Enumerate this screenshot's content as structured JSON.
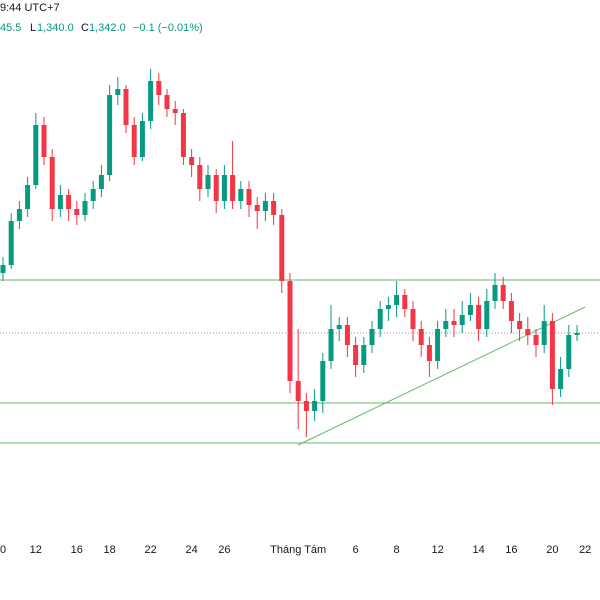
{
  "header": {
    "time": "9:44 UTC+7",
    "open_fragment": "45.5",
    "low_label": "L",
    "low": {
      "value": 1340,
      "label": "1,340.0"
    },
    "close_label": "C",
    "close": {
      "value": 1342,
      "label": "1,342.0"
    },
    "change": "−0.1 (−0.01%)"
  },
  "chart_data": {
    "type": "candlestick",
    "categories": [
      "0",
      null,
      null,
      null,
      "12",
      null,
      null,
      null,
      null,
      "16",
      null,
      null,
      null,
      "18",
      null,
      null,
      null,
      null,
      "22",
      null,
      null,
      null,
      null,
      "24",
      null,
      null,
      null,
      "26",
      null,
      null,
      null,
      null,
      null,
      null,
      null,
      null,
      "Tháng Tám",
      null,
      null,
      null,
      null,
      null,
      null,
      "6",
      null,
      null,
      null,
      null,
      "8",
      null,
      null,
      null,
      null,
      "12",
      null,
      null,
      null,
      null,
      "14",
      null,
      null,
      null,
      "16",
      null,
      null,
      null,
      null,
      "20",
      null,
      null,
      null,
      "22"
    ],
    "ohlc": [
      [
        1357,
        1361,
        1355,
        1359
      ],
      [
        1359,
        1372,
        1358,
        1370
      ],
      [
        1370,
        1375,
        1368,
        1373
      ],
      [
        1373,
        1381,
        1371,
        1379
      ],
      [
        1379,
        1397,
        1378,
        1394
      ],
      [
        1394,
        1396,
        1384,
        1386
      ],
      [
        1386,
        1388,
        1370,
        1373
      ],
      [
        1373,
        1379,
        1371,
        1376.5
      ],
      [
        1376.5,
        1378,
        1370,
        1373
      ],
      [
        1373,
        1375,
        1369,
        1371.5
      ],
      [
        1371.5,
        1377,
        1370,
        1375
      ],
      [
        1375,
        1380,
        1373,
        1378
      ],
      [
        1378,
        1384,
        1376,
        1381.5
      ],
      [
        1381.5,
        1404,
        1380,
        1401.5
      ],
      [
        1401.5,
        1406,
        1399,
        1403
      ],
      [
        1403,
        1404,
        1392,
        1394
      ],
      [
        1394,
        1396,
        1384,
        1386
      ],
      [
        1386,
        1397,
        1385,
        1395
      ],
      [
        1395,
        1408,
        1393,
        1405
      ],
      [
        1405,
        1407,
        1399,
        1401.5
      ],
      [
        1401.5,
        1403,
        1396,
        1398
      ],
      [
        1398,
        1400,
        1394,
        1397
      ],
      [
        1397,
        1398,
        1384,
        1386
      ],
      [
        1386,
        1388,
        1381,
        1384
      ],
      [
        1384,
        1386,
        1375,
        1378
      ],
      [
        1378,
        1384,
        1376,
        1381.5
      ],
      [
        1381.5,
        1383,
        1372,
        1375
      ],
      [
        1375,
        1384,
        1373,
        1381.5
      ],
      [
        1381.5,
        1390,
        1373,
        1375
      ],
      [
        1375,
        1380,
        1373,
        1378
      ],
      [
        1378,
        1380,
        1371,
        1374
      ],
      [
        1374,
        1376,
        1368,
        1372.5
      ],
      [
        1372.5,
        1377,
        1370,
        1375
      ],
      [
        1375,
        1377,
        1369,
        1371.5
      ],
      [
        1371.5,
        1373,
        1352,
        1355
      ],
      [
        1355,
        1357,
        1327,
        1330
      ],
      [
        1330,
        1343,
        1318,
        1325
      ],
      [
        1325,
        1327,
        1316,
        1322.5
      ],
      [
        1322.5,
        1328,
        1320,
        1325
      ],
      [
        1325,
        1337,
        1322,
        1335
      ],
      [
        1335,
        1349,
        1333,
        1343
      ],
      [
        1343,
        1346,
        1340,
        1344
      ],
      [
        1344,
        1346,
        1336,
        1339
      ],
      [
        1339,
        1341,
        1331,
        1334
      ],
      [
        1334,
        1341,
        1332,
        1339
      ],
      [
        1339,
        1345,
        1337,
        1343
      ],
      [
        1343,
        1350,
        1341,
        1348
      ],
      [
        1348,
        1351,
        1345,
        1349
      ],
      [
        1349,
        1355,
        1346,
        1351.5
      ],
      [
        1351.5,
        1353,
        1346,
        1348
      ],
      [
        1348,
        1350,
        1340,
        1343
      ],
      [
        1343,
        1345,
        1336,
        1339
      ],
      [
        1339,
        1341,
        1331,
        1335
      ],
      [
        1335,
        1345,
        1333,
        1343
      ],
      [
        1343,
        1348,
        1341,
        1345
      ],
      [
        1345,
        1348,
        1341,
        1344
      ],
      [
        1344,
        1350,
        1342,
        1346.5
      ],
      [
        1346.5,
        1352,
        1345,
        1349
      ],
      [
        1349,
        1351,
        1340,
        1343
      ],
      [
        1343,
        1353,
        1341,
        1350
      ],
      [
        1350,
        1357,
        1348,
        1354
      ],
      [
        1354,
        1356,
        1348,
        1350
      ],
      [
        1350,
        1352,
        1342,
        1345
      ],
      [
        1345,
        1347,
        1340,
        1343
      ],
      [
        1343,
        1346,
        1339,
        1341.5
      ],
      [
        1341.5,
        1343,
        1336,
        1339
      ],
      [
        1339,
        1349,
        1337,
        1345
      ],
      [
        1345,
        1347,
        1324,
        1328
      ],
      [
        1328,
        1336,
        1326,
        1333
      ],
      [
        1333,
        1344,
        1331,
        1341.5
      ],
      [
        1341.5,
        1344,
        1340,
        1342
      ],
      null
    ],
    "up_color": "#089981",
    "down_color": "#f23645",
    "ylim": [
      1290.25,
      1425.25
    ],
    "hlines": [
      1355.25,
      1324.5,
      1314.5
    ],
    "line_color": "#66bb6a",
    "trendline": {
      "x": [
        36,
        71
      ],
      "y": [
        1314,
        1348.5
      ]
    }
  }
}
